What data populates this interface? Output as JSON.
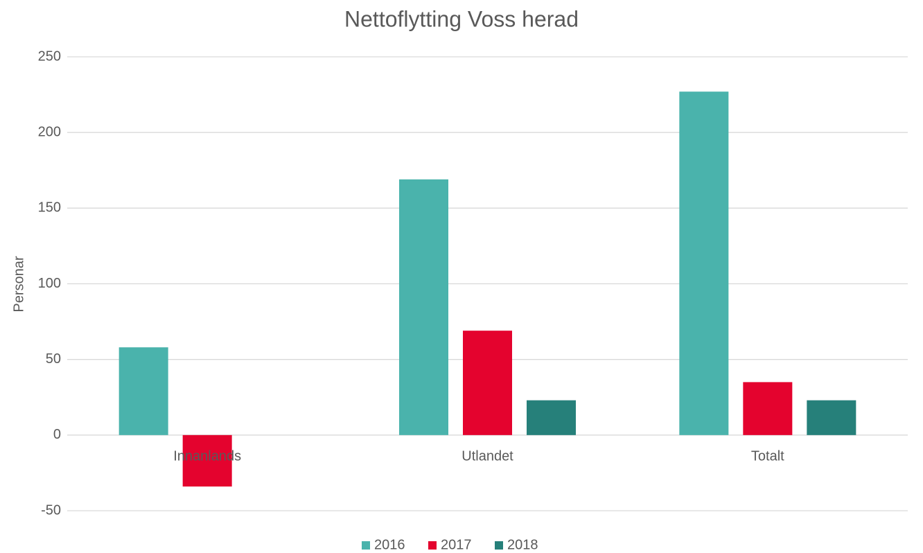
{
  "chart_data": {
    "type": "bar",
    "title": "Nettoflytting Voss herad",
    "y_label": "Personar",
    "categories": [
      "Innanlands",
      "Utlandet",
      "Totalt"
    ],
    "series": [
      {
        "name": "2016",
        "color": "#4ab3ac",
        "values": [
          58,
          169,
          227
        ]
      },
      {
        "name": "2017",
        "color": "#e4032e",
        "values": [
          -34,
          69,
          35
        ]
      },
      {
        "name": "2018",
        "color": "#26807a",
        "values": [
          0,
          23,
          23
        ]
      }
    ],
    "ylim": [
      -50,
      250
    ],
    "yticks": [
      -50,
      0,
      50,
      100,
      150,
      200,
      250
    ],
    "grid": true,
    "legend": "bottom"
  }
}
